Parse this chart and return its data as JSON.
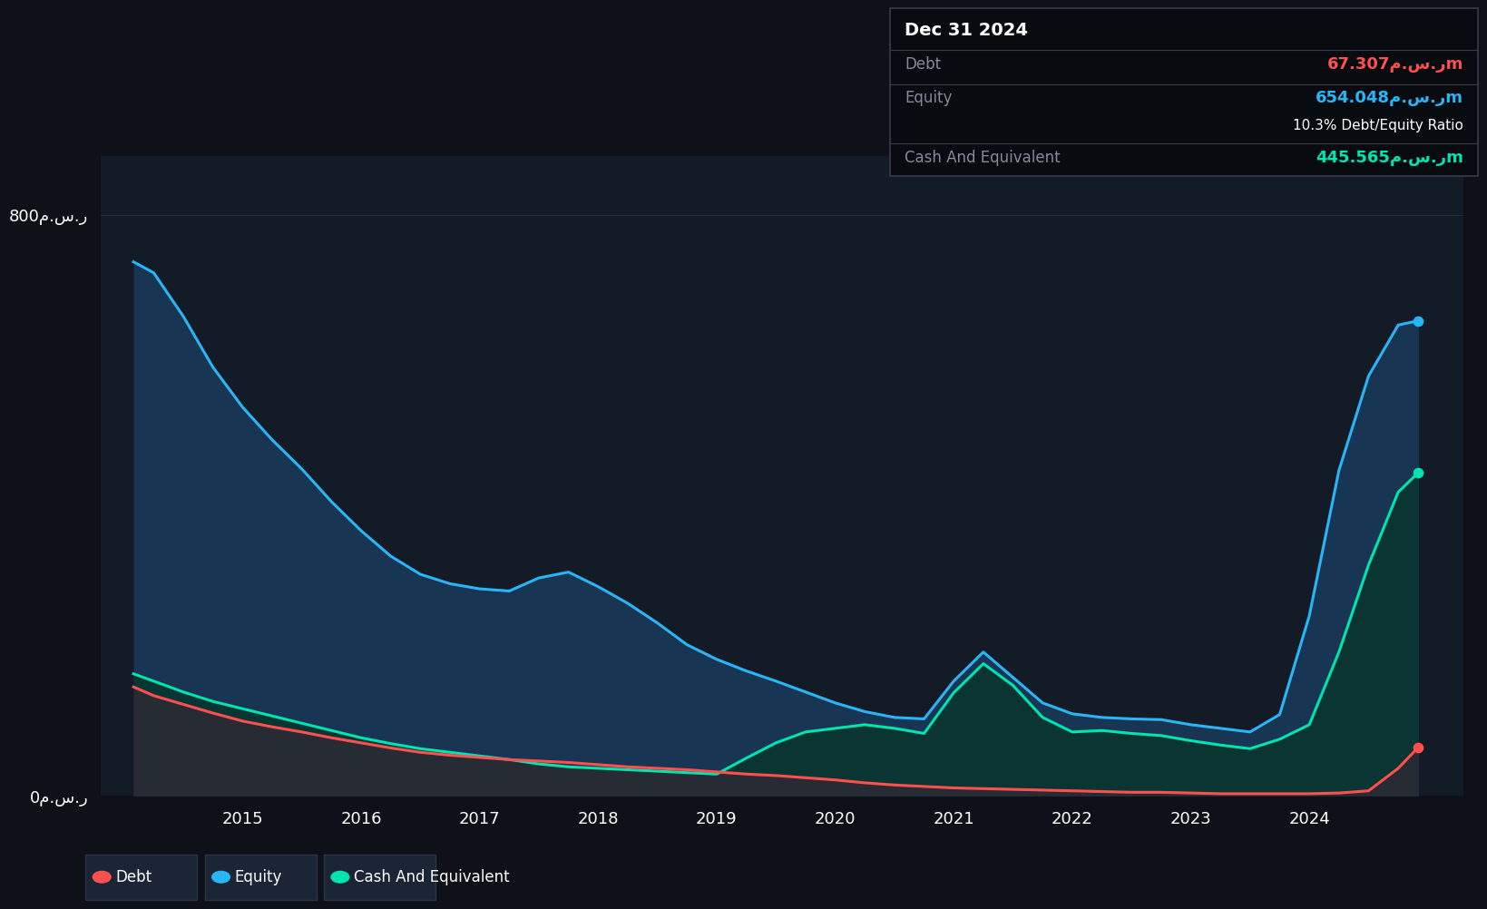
{
  "bg_color": "#0e1117",
  "panel_bg": "#131b26",
  "grid_color": "#232d3d",
  "debt_color": "#ff5050",
  "equity_color": "#29b6f6",
  "cash_color": "#00e5b0",
  "years": [
    2014.08,
    2014.25,
    2014.5,
    2014.75,
    2015.0,
    2015.25,
    2015.5,
    2015.75,
    2016.0,
    2016.25,
    2016.5,
    2016.75,
    2017.0,
    2017.25,
    2017.5,
    2017.75,
    2018.0,
    2018.25,
    2018.5,
    2018.75,
    2019.0,
    2019.25,
    2019.5,
    2019.75,
    2020.0,
    2020.25,
    2020.5,
    2020.75,
    2021.0,
    2021.25,
    2021.5,
    2021.75,
    2022.0,
    2022.25,
    2022.5,
    2022.75,
    2023.0,
    2023.25,
    2023.5,
    2023.75,
    2024.0,
    2024.25,
    2024.5,
    2024.75,
    2024.92
  ],
  "equity": [
    735,
    720,
    660,
    590,
    535,
    490,
    450,
    405,
    365,
    330,
    305,
    292,
    285,
    282,
    300,
    308,
    288,
    265,
    238,
    208,
    188,
    172,
    158,
    143,
    128,
    116,
    108,
    106,
    158,
    198,
    163,
    128,
    113,
    108,
    106,
    105,
    98,
    93,
    88,
    112,
    248,
    448,
    578,
    648,
    654
  ],
  "debt": [
    150,
    138,
    126,
    114,
    103,
    95,
    88,
    80,
    73,
    66,
    60,
    56,
    53,
    50,
    48,
    46,
    43,
    40,
    38,
    36,
    33,
    30,
    28,
    25,
    22,
    18,
    15,
    13,
    11,
    10,
    9,
    8,
    7,
    6,
    5,
    5,
    4,
    3,
    3,
    3,
    3,
    4,
    7,
    38,
    67
  ],
  "cash": [
    168,
    158,
    143,
    130,
    120,
    110,
    100,
    90,
    80,
    72,
    65,
    60,
    55,
    50,
    44,
    40,
    38,
    36,
    34,
    32,
    30,
    52,
    73,
    88,
    93,
    98,
    93,
    86,
    142,
    182,
    152,
    108,
    88,
    90,
    86,
    83,
    76,
    70,
    65,
    78,
    98,
    198,
    318,
    418,
    445
  ],
  "xtick_years": [
    2015,
    2016,
    2017,
    2018,
    2019,
    2020,
    2021,
    2022,
    2023,
    2024
  ],
  "xlim": [
    2013.8,
    2025.3
  ],
  "ylim": [
    0,
    880
  ],
  "yticks": [
    0,
    800
  ],
  "tooltip_date": "Dec 31 2024",
  "tooltip_debt_label": "Debt",
  "tooltip_debt_val": "67.307م.س.رm",
  "tooltip_equity_label": "Equity",
  "tooltip_equity_val": "654.048م.س.رm",
  "tooltip_ratio": "10.3% Debt/Equity Ratio",
  "tooltip_cash_label": "Cash And Equivalent",
  "tooltip_cash_val": "445.565م.س.رm",
  "legend_labels": [
    "Debt",
    "Equity",
    "Cash And Equivalent"
  ]
}
